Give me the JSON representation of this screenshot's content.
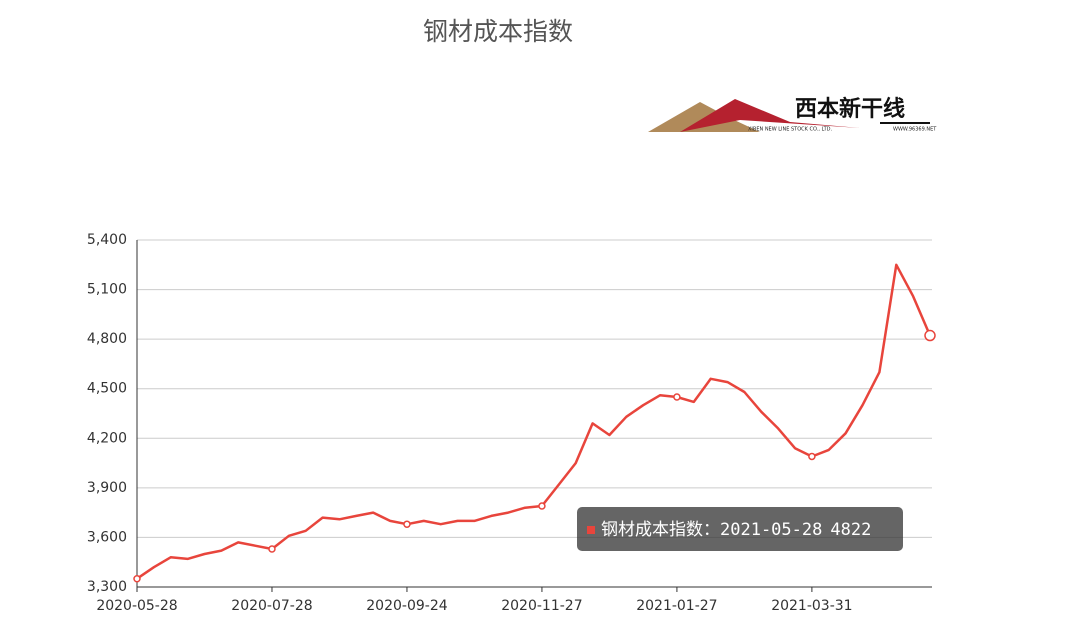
{
  "chart_data": {
    "type": "line",
    "title": "钢材成本指数",
    "logo": {
      "name": "西本新干线",
      "company": "XIBEN NEW LINE STOCK CO., LTD.",
      "site": "WWW.96369.NET"
    },
    "categories": [
      "2020-05-28",
      null,
      null,
      null,
      null,
      null,
      null,
      null,
      "2020-07-28",
      null,
      null,
      null,
      null,
      null,
      null,
      null,
      "2020-09-24",
      null,
      null,
      null,
      null,
      null,
      null,
      null,
      "2020-11-27",
      null,
      null,
      null,
      null,
      null,
      null,
      null,
      "2021-01-27",
      null,
      null,
      null,
      null,
      null,
      null,
      null,
      "2021-03-31",
      null,
      null,
      null,
      null,
      null,
      null,
      "2021-05-28"
    ],
    "series": [
      {
        "name": "钢材成本指数",
        "color": "#e8453c",
        "values": [
          3350,
          3420,
          3480,
          3470,
          3500,
          3520,
          3570,
          3550,
          3530,
          3610,
          3640,
          3720,
          3710,
          3730,
          3750,
          3700,
          3680,
          3700,
          3680,
          3700,
          3700,
          3730,
          3750,
          3780,
          3790,
          3920,
          4050,
          4290,
          4220,
          4330,
          4400,
          4460,
          4450,
          4420,
          4560,
          4540,
          4480,
          4360,
          4260,
          4140,
          4090,
          4130,
          4230,
          4400,
          4600,
          5250,
          5060,
          4822
        ]
      }
    ],
    "ylim": [
      3300,
      5400
    ],
    "yticks": [
      {
        "value": 3300,
        "label": "3,300"
      },
      {
        "value": 3600,
        "label": "3,600"
      },
      {
        "value": 3900,
        "label": "3,900"
      },
      {
        "value": 4200,
        "label": "4,200"
      },
      {
        "value": 4500,
        "label": "4,500"
      },
      {
        "value": 4800,
        "label": "4,800"
      },
      {
        "value": 5100,
        "label": "5,100"
      },
      {
        "value": 5400,
        "label": "5,400"
      }
    ],
    "grid": true,
    "tooltip": {
      "prefix": "钢材成本指数："
    }
  }
}
